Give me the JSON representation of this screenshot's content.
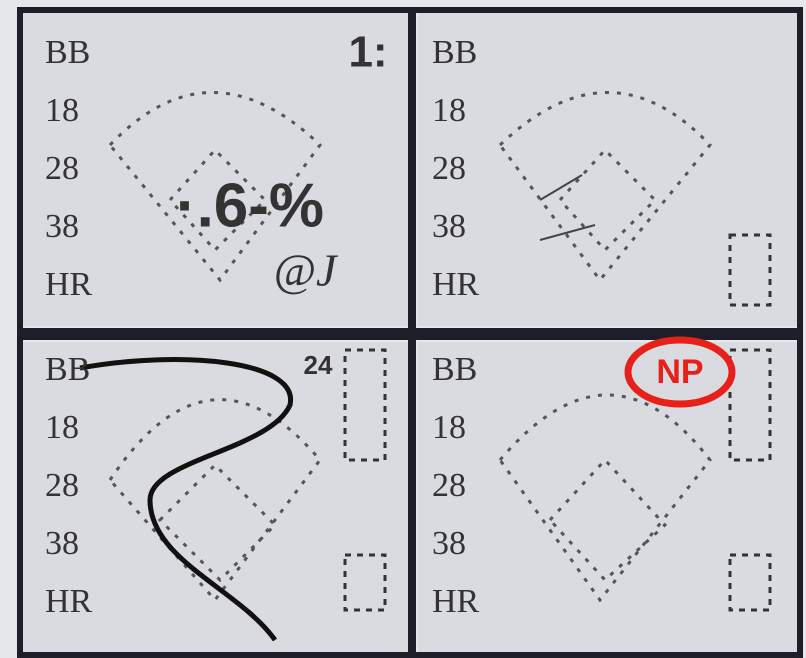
{
  "panels": [
    {
      "labels": [
        "BB",
        "18",
        "28",
        "38",
        "HR"
      ]
    },
    {
      "labels": [
        "BB",
        "18",
        "28",
        "38",
        "HR"
      ]
    },
    {
      "labels": [
        "BB",
        "18",
        "28",
        "38",
        "HR"
      ]
    },
    {
      "labels": [
        "BB",
        "18",
        "28",
        "38",
        "HR"
      ]
    }
  ],
  "annotations": {
    "corner_mark": "1:",
    "center_mark": "·.6-%",
    "initials": "@J",
    "pitch_count": "24",
    "np_badge": "NP"
  }
}
